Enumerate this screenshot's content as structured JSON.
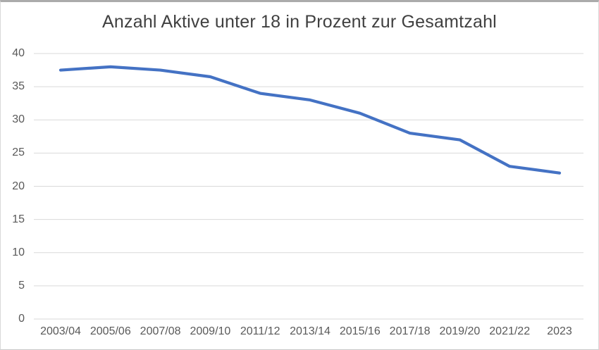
{
  "chart_data": {
    "type": "line",
    "title": "Anzahl Aktive unter 18 in Prozent zur Gesamtzahl",
    "categories": [
      "2003/04",
      "2005/06",
      "2007/08",
      "2009/10",
      "2011/12",
      "2013/14",
      "2015/16",
      "2017/18",
      "2019/20",
      "2021/22",
      "2023"
    ],
    "values": [
      37.5,
      38,
      37.5,
      36.5,
      34,
      33,
      31,
      28,
      27,
      23,
      22
    ],
    "xlabel": "",
    "ylabel": "",
    "ylim": [
      0,
      40
    ],
    "yticks": [
      0,
      5,
      10,
      15,
      20,
      25,
      30,
      35,
      40
    ],
    "grid": true,
    "legend": false,
    "line_color": "#4472C4",
    "gridline_color": "#D9D9D9",
    "tick_label_color": "#595959",
    "title_color": "#404040"
  }
}
